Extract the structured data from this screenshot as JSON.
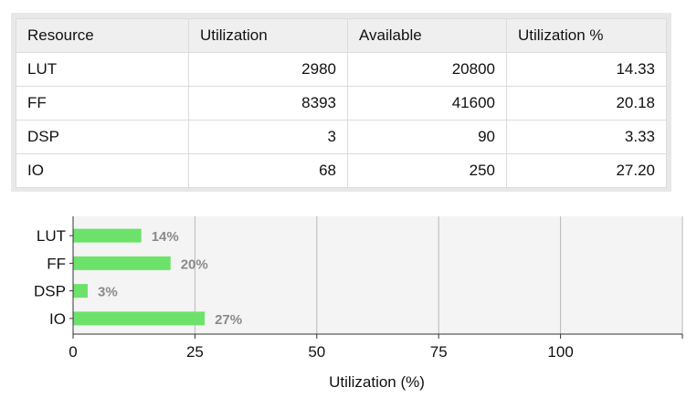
{
  "table": {
    "headers": [
      "Resource",
      "Utilization",
      "Available",
      "Utilization %"
    ],
    "rows": [
      [
        "LUT",
        "2980",
        "20800",
        "14.33"
      ],
      [
        "FF",
        "8393",
        "41600",
        "20.18"
      ],
      [
        "DSP",
        "3",
        "90",
        "3.33"
      ],
      [
        "IO",
        "68",
        "250",
        "27.20"
      ]
    ]
  },
  "chart_data": {
    "type": "bar",
    "orientation": "horizontal",
    "categories": [
      "LUT",
      "FF",
      "DSP",
      "IO"
    ],
    "values": [
      14,
      20,
      3,
      27
    ],
    "data_labels": [
      "14%",
      "20%",
      "3%",
      "27%"
    ],
    "xlabel": "Utilization (%)",
    "xlim": [
      0,
      125
    ],
    "xticks": [
      "0",
      "25",
      "50",
      "75",
      "100"
    ],
    "grid": true,
    "bar_color": "#6de26a",
    "label_color": "#8a8a8a",
    "plot_background": "#f4f4f4"
  }
}
